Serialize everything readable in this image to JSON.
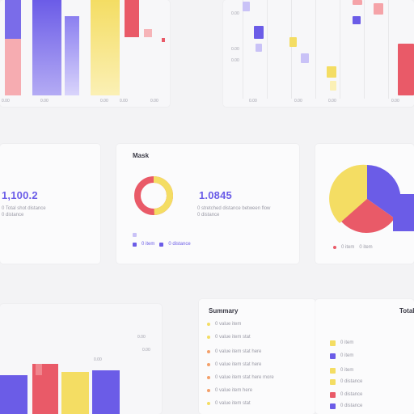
{
  "colors": {
    "purple": "#6b5ce7",
    "yellow": "#f4dd63",
    "red": "#e95a68",
    "pink": "#f5a3a8",
    "pale_purple": "#c9c2f7",
    "pale_yellow": "#fbf0b5"
  },
  "top_left": {
    "ticks": [
      "0.00",
      "0.00",
      "0.00",
      "0.00"
    ]
  },
  "top_right": {
    "y_ticks": [
      "0.00",
      "0.00",
      "0.00"
    ],
    "x_ticks": [
      "0.00",
      "0.00",
      "0.00",
      "0.00"
    ]
  },
  "stat_left": {
    "value": "1,100.2",
    "caption_lines": [
      "0 Total shot distance",
      "0 distance"
    ]
  },
  "donut_card": {
    "title": "Mask",
    "value": "1.0845",
    "caption_lines": [
      "0 stretched distance between flow",
      "0 distance"
    ],
    "legend": [
      "0 item",
      "0 distance"
    ]
  },
  "pie_card": {
    "legend": [
      "0 item",
      "0 item"
    ]
  },
  "bottom_left": {
    "ticks": [
      "0.00",
      "0.00",
      "0.00"
    ]
  },
  "list_card": {
    "title": "Summary",
    "items": [
      "0 value item",
      "0 value item stat",
      "0 value item stat here",
      "0 value item stat here",
      "0 value item stat here more",
      "0 value item here",
      "0 value item stat",
      "0 value item here"
    ]
  },
  "legend_card": {
    "title": "Total",
    "items": [
      "0 item",
      "0 item",
      "0 item",
      "0 distance",
      "0 distance",
      "0 distance"
    ]
  }
}
